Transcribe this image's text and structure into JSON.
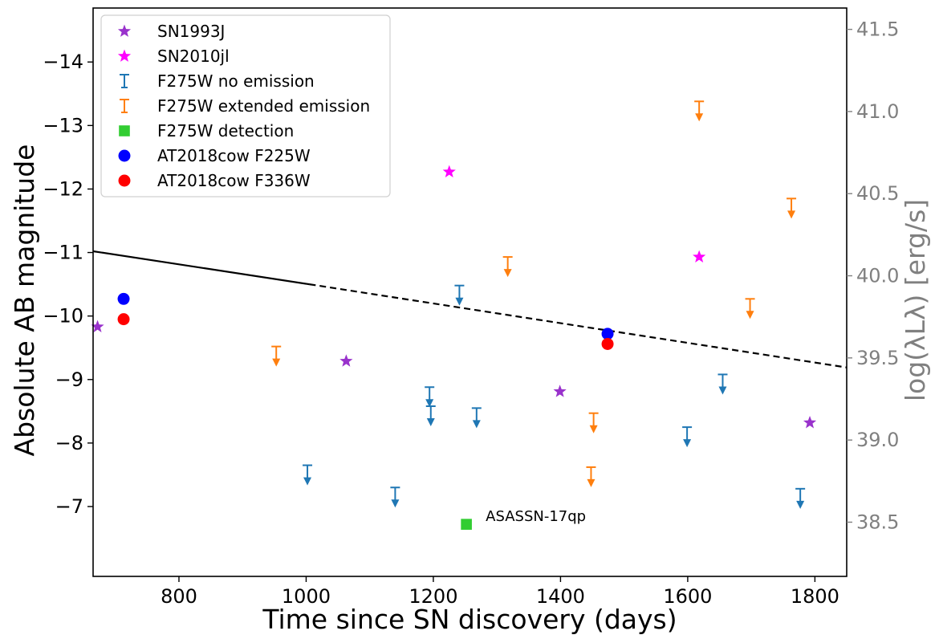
{
  "chart_data": {
    "type": "scatter",
    "xlabel": "Time since SN discovery (days)",
    "ylabel": "Absolute AB magnitude",
    "ylabel_right": "log(λLλ) [erg/s]",
    "xlim": [
      665,
      1850
    ],
    "ylim": [
      -5.9,
      -14.85
    ],
    "y2lim": [
      38.17,
      41.63
    ],
    "x_ticks": [
      800,
      1000,
      1200,
      1400,
      1600,
      1800
    ],
    "y_ticks": [
      -14,
      -13,
      -12,
      -11,
      -10,
      -9,
      -8,
      -7
    ],
    "y2_ticks": [
      38.5,
      39.0,
      39.5,
      40.0,
      40.5,
      41.0,
      41.5
    ],
    "x_tick_labels": [
      "800",
      "1000",
      "1200",
      "1400",
      "1600",
      "1800"
    ],
    "y_tick_labels": [
      "−14",
      "−13",
      "−12",
      "−11",
      "−10",
      "−9",
      "−8",
      "−7"
    ],
    "y2_tick_labels": [
      "38.5",
      "39.0",
      "39.5",
      "40.0",
      "40.5",
      "41.0",
      "41.5"
    ],
    "grid": false,
    "legend_position": "top-left",
    "series": [
      {
        "name": "SN1993J",
        "marker": "star",
        "color": "#9932CC",
        "points": [
          [
            672,
            -9.83
          ],
          [
            1063,
            -9.29
          ],
          [
            1399,
            -8.81
          ],
          [
            1792,
            -8.32
          ]
        ]
      },
      {
        "name": "SN2010jl",
        "marker": "star",
        "color": "#FF00FF",
        "points": [
          [
            1225,
            -12.27
          ],
          [
            1618,
            -10.93
          ]
        ]
      },
      {
        "name": "F275W no emission",
        "marker": "upper-limit",
        "color": "#1F77B4",
        "points": [
          [
            1002,
            -7.65
          ],
          [
            1140,
            -7.3
          ],
          [
            1194,
            -8.88
          ],
          [
            1196,
            -8.58
          ],
          [
            1241,
            -10.48
          ],
          [
            1268,
            -8.55
          ],
          [
            1599,
            -8.25
          ],
          [
            1655,
            -9.08
          ],
          [
            1777,
            -7.28
          ]
        ]
      },
      {
        "name": "F275W extended emission",
        "marker": "upper-limit",
        "color": "#FF7F0E",
        "points": [
          [
            953,
            -9.52
          ],
          [
            1317,
            -10.93
          ],
          [
            1448,
            -7.62
          ],
          [
            1452,
            -8.47
          ],
          [
            1618,
            -13.38
          ],
          [
            1698,
            -10.27
          ],
          [
            1763,
            -11.85
          ]
        ]
      },
      {
        "name": "F275W detection",
        "marker": "square",
        "color": "#32CD32",
        "points": [
          [
            1252,
            -6.72
          ]
        ]
      },
      {
        "name": "AT2018cow F225W",
        "marker": "circle",
        "color": "#0000FF",
        "points": [
          [
            713,
            -10.27
          ],
          [
            1474,
            -9.72
          ]
        ]
      },
      {
        "name": "AT2018cow F336W",
        "marker": "circle",
        "color": "#FF0000",
        "points": [
          [
            713,
            -9.95
          ],
          [
            1474,
            -9.56
          ]
        ]
      }
    ],
    "lines": [
      {
        "style": "solid",
        "color": "#000000",
        "points": [
          [
            665,
            -11.02
          ],
          [
            1005,
            -10.5
          ]
        ]
      },
      {
        "style": "dashed",
        "color": "#000000",
        "points": [
          [
            1005,
            -10.5
          ],
          [
            1850,
            -9.19
          ]
        ]
      }
    ],
    "annotations": [
      {
        "text": "ASASSN-17qp",
        "x": 1252,
        "y": -6.72
      }
    ]
  }
}
